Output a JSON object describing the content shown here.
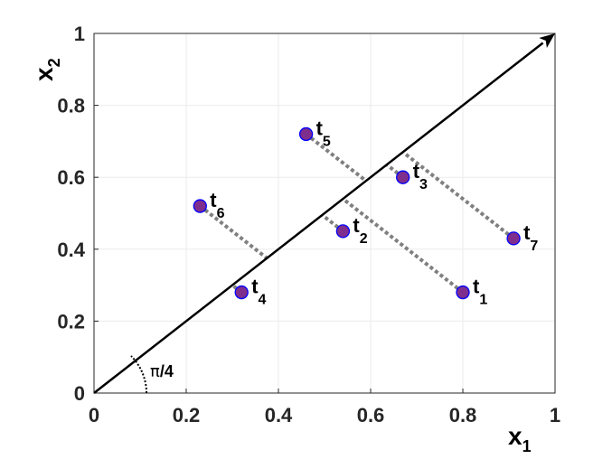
{
  "chart_data": {
    "type": "scatter",
    "xlim": [
      0,
      1
    ],
    "ylim": [
      0,
      1
    ],
    "grid": true,
    "x_ticks": [
      "0",
      "0.2",
      "0.4",
      "0.6",
      "0.8",
      "1"
    ],
    "y_ticks": [
      "0",
      "0.2",
      "0.4",
      "0.6",
      "0.8",
      "1"
    ],
    "xlabel": {
      "main": "x",
      "sub": "1"
    },
    "ylabel": {
      "main": "x",
      "sub": "2"
    },
    "angle_annotation": {
      "symbol": "π",
      "rest": "/4"
    },
    "diagonal_line": {
      "from": [
        0,
        0
      ],
      "to": [
        1,
        1
      ],
      "arrow": true
    },
    "points": [
      {
        "name": "t",
        "sub": "1",
        "x": 0.8,
        "y": 0.28
      },
      {
        "name": "t",
        "sub": "2",
        "x": 0.54,
        "y": 0.45
      },
      {
        "name": "t",
        "sub": "3",
        "x": 0.67,
        "y": 0.6
      },
      {
        "name": "t",
        "sub": "4",
        "x": 0.32,
        "y": 0.28
      },
      {
        "name": "t",
        "sub": "5",
        "x": 0.46,
        "y": 0.72
      },
      {
        "name": "t",
        "sub": "6",
        "x": 0.23,
        "y": 0.52
      },
      {
        "name": "t",
        "sub": "7",
        "x": 0.91,
        "y": 0.43
      }
    ],
    "colors": {
      "point_fill": "#7E2F8E",
      "point_edge": "#0000FF",
      "projection": "#808080",
      "line": "#000000",
      "grid": "#ebebeb"
    }
  }
}
